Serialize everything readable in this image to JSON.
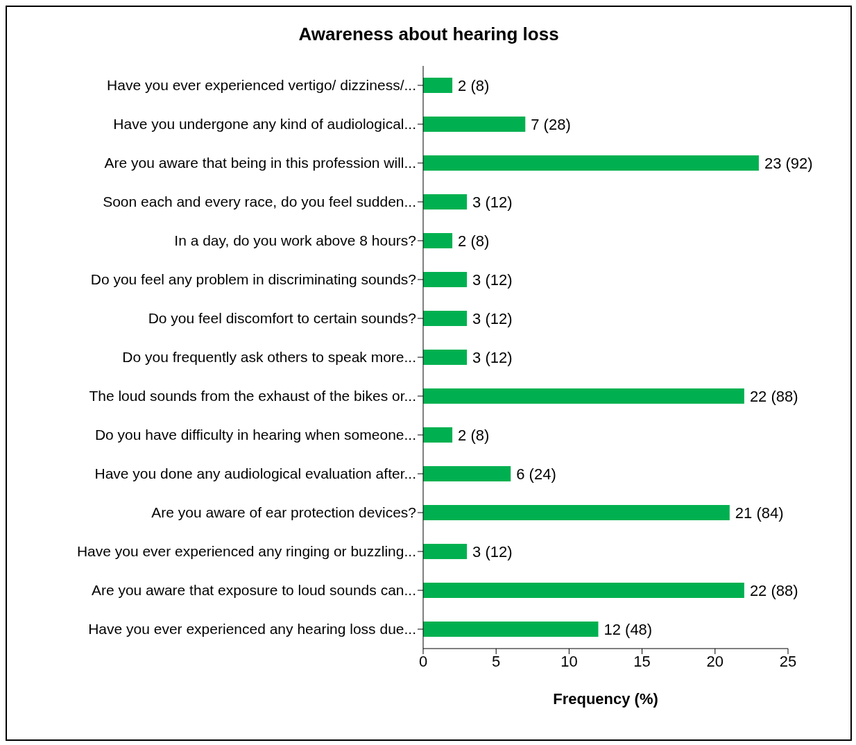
{
  "chart_data": {
    "type": "bar",
    "orientation": "horizontal",
    "title": "Awareness about hearing loss",
    "xlabel": "Frequency (%)",
    "categories": [
      "Have you ever experienced vertigo/ dizziness/...",
      "Have you undergone any kind of audiological...",
      "Are you aware that being in this profession will...",
      "Soon each and every race, do you feel sudden...",
      "In a day, do you work above 8 hours?",
      "Do you feel any problem in discriminating sounds?",
      "Do you feel discomfort to certain sounds?",
      "Do you frequently ask others to speak more...",
      "The loud sounds from the exhaust of the bikes or...",
      "Do you have difficulty in hearing when someone...",
      "Have you done any audiological evaluation after...",
      "Are you aware of ear protection devices?",
      "Have you ever experienced any ringing or buzzling...",
      "Are you aware that exposure to loud sounds can...",
      "Have you ever experienced any hearing loss due..."
    ],
    "values": [
      2,
      7,
      23,
      3,
      2,
      3,
      3,
      3,
      22,
      2,
      6,
      21,
      3,
      22,
      12
    ],
    "value_labels": [
      "2 (8)",
      "7 (28)",
      "23 (92)",
      "3 (12)",
      "2 (8)",
      "3 (12)",
      "3 (12)",
      "3 (12)",
      "22 (88)",
      "2 (8)",
      "6 (24)",
      "21 (84)",
      "3 (12)",
      "22 (88)",
      "12 (48)"
    ],
    "color": "#00b050",
    "xlim": [
      0,
      25
    ],
    "xticks": [
      0,
      5,
      10,
      15,
      20,
      25
    ],
    "grid": false
  }
}
